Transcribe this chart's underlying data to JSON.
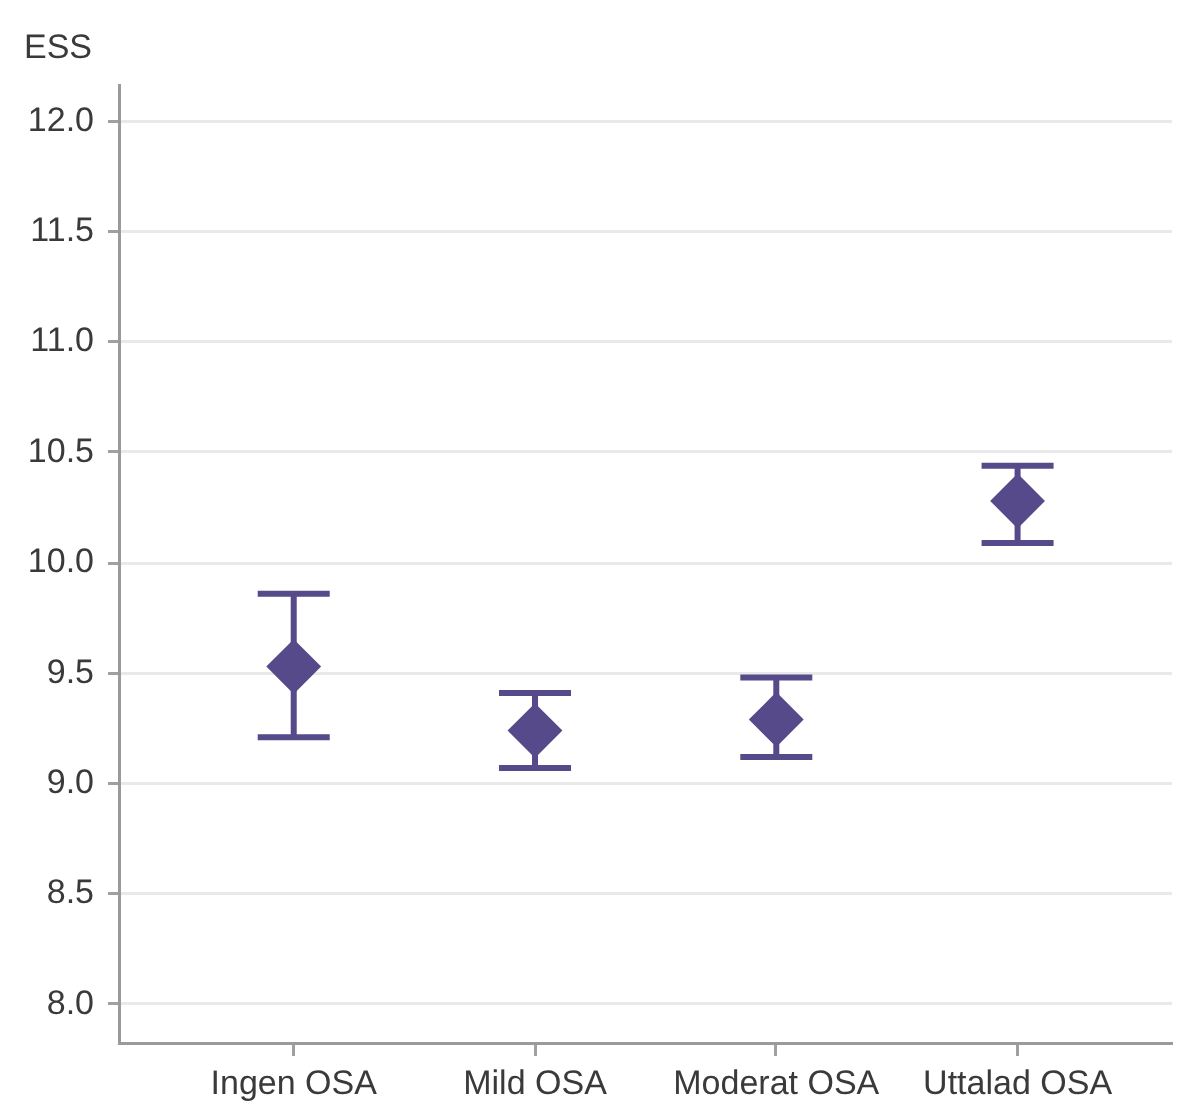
{
  "chart_data": {
    "type": "scatter",
    "ylabel": "ESS",
    "categories": [
      "Ingen OSA",
      "Mild OSA",
      "Moderat OSA",
      "Uttalad OSA"
    ],
    "series": [
      {
        "color": "#564a8a",
        "values": [
          9.53,
          9.24,
          9.29,
          10.28
        ],
        "errors": [
          [
            9.21,
            9.86
          ],
          [
            9.07,
            9.41
          ],
          [
            9.12,
            9.48
          ],
          [
            10.09,
            10.44
          ]
        ]
      }
    ],
    "ylim": [
      7.82,
      12.16
    ],
    "yticks": [
      {
        "value": 8,
        "label": "8.0"
      },
      {
        "value": 8.5,
        "label": "8.5"
      },
      {
        "value": 9,
        "label": "9.0"
      },
      {
        "value": 9.5,
        "label": "9.5"
      },
      {
        "value": 10,
        "label": "10.0"
      },
      {
        "value": 10.5,
        "label": "10.5"
      },
      {
        "value": 11,
        "label": "11.0"
      },
      {
        "value": 11.5,
        "label": "11.5"
      },
      {
        "value": 12,
        "label": "12.0"
      }
    ],
    "grid": "y",
    "legend": false,
    "marker": "diamond"
  }
}
